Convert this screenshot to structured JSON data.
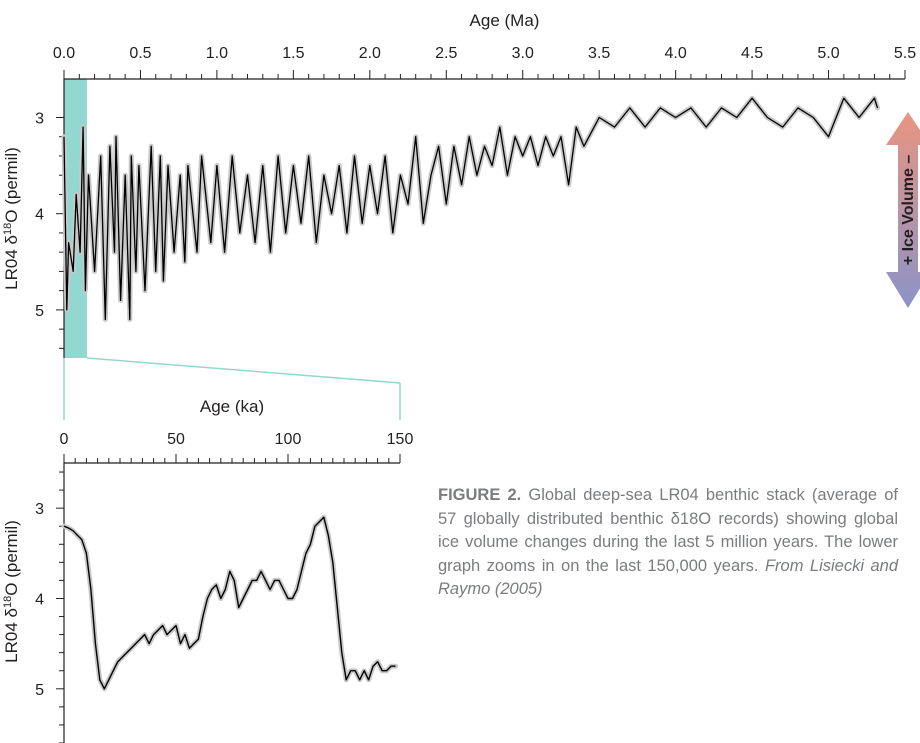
{
  "chart_data": [
    {
      "type": "line",
      "xlabel": "Age (Ma)",
      "ylabel": "LR04 δ18O (permil)",
      "xlim": [
        0,
        5.5
      ],
      "ylim": [
        2.6,
        5.5
      ],
      "y_inverted": true,
      "x_ticks": [
        "0.0",
        "0.5",
        "1.0",
        "1.5",
        "2.0",
        "2.5",
        "3.0",
        "3.5",
        "4.0",
        "4.5",
        "5.0",
        "5.5"
      ],
      "y_ticks": [
        "3",
        "4",
        "5"
      ],
      "grid": false,
      "highlight_range_ma": [
        0,
        0.15
      ],
      "highlight_color": "#93d7d1",
      "line_color": "#000000",
      "uncertainty_color": "#c8c8c8",
      "series": [
        {
          "x": [
            0.0,
            0.018,
            0.03,
            0.06,
            0.08,
            0.105,
            0.125,
            0.14,
            0.16,
            0.2,
            0.24,
            0.27,
            0.3,
            0.33,
            0.34,
            0.37,
            0.4,
            0.43,
            0.44,
            0.47,
            0.49,
            0.53,
            0.57,
            0.6,
            0.63,
            0.65,
            0.68,
            0.72,
            0.76,
            0.79,
            0.81,
            0.87,
            0.9,
            0.96,
            1.0,
            1.05,
            1.1,
            1.15,
            1.2,
            1.25,
            1.3,
            1.35,
            1.4,
            1.45,
            1.5,
            1.55,
            1.6,
            1.65,
            1.7,
            1.75,
            1.8,
            1.85,
            1.9,
            1.95,
            2.0,
            2.05,
            2.1,
            2.15,
            2.2,
            2.25,
            2.3,
            2.35,
            2.4,
            2.45,
            2.5,
            2.55,
            2.6,
            2.65,
            2.7,
            2.75,
            2.8,
            2.85,
            2.9,
            2.95,
            3.0,
            3.05,
            3.1,
            3.15,
            3.2,
            3.25,
            3.3,
            3.35,
            3.4,
            3.5,
            3.6,
            3.7,
            3.8,
            3.9,
            4.0,
            4.1,
            4.2,
            4.3,
            4.4,
            4.5,
            4.6,
            4.7,
            4.8,
            4.9,
            5.0,
            5.1,
            5.2,
            5.3,
            5.32
          ],
          "y": [
            3.2,
            5.0,
            4.3,
            4.6,
            3.8,
            4.4,
            3.1,
            4.8,
            3.6,
            4.6,
            3.4,
            5.1,
            3.3,
            4.4,
            3.2,
            4.9,
            3.6,
            5.1,
            3.4,
            4.6,
            3.5,
            4.8,
            3.3,
            4.6,
            3.4,
            4.7,
            3.5,
            4.4,
            3.6,
            4.5,
            3.5,
            4.4,
            3.4,
            4.3,
            3.5,
            4.4,
            3.4,
            4.2,
            3.6,
            4.3,
            3.5,
            4.4,
            3.4,
            4.2,
            3.5,
            4.1,
            3.4,
            4.3,
            3.6,
            4.0,
            3.5,
            4.2,
            3.4,
            4.1,
            3.5,
            4.0,
            3.4,
            4.2,
            3.6,
            3.9,
            3.2,
            4.1,
            3.6,
            3.3,
            3.9,
            3.3,
            3.7,
            3.2,
            3.6,
            3.3,
            3.5,
            3.1,
            3.6,
            3.2,
            3.4,
            3.2,
            3.5,
            3.2,
            3.4,
            3.2,
            3.7,
            3.1,
            3.3,
            3.0,
            3.1,
            2.9,
            3.1,
            2.9,
            3.0,
            2.9,
            3.1,
            2.9,
            3.0,
            2.8,
            3.0,
            3.1,
            2.9,
            3.0,
            3.2,
            2.8,
            3.0,
            2.8,
            2.9
          ]
        }
      ],
      "side_indicator": {
        "label": "+ Ice Volume –",
        "top_color": "#e8957f",
        "bottom_color": "#8b93c8"
      }
    },
    {
      "type": "line",
      "xlabel": "Age (ka)",
      "ylabel": "LR04 δ18O (permil)",
      "xlim": [
        0,
        150
      ],
      "ylim": [
        2.5,
        5.6
      ],
      "y_inverted": true,
      "x_ticks": [
        "0",
        "50",
        "100",
        "150"
      ],
      "y_ticks": [
        "3",
        "4",
        "5"
      ],
      "grid": false,
      "line_color": "#000000",
      "uncertainty_color": "#c8c8c8",
      "series": [
        {
          "x": [
            0,
            2,
            4,
            6,
            8,
            10,
            12,
            14,
            16,
            18,
            20,
            22,
            24,
            26,
            28,
            30,
            32,
            34,
            36,
            38,
            40,
            42,
            44,
            46,
            48,
            50,
            52,
            54,
            56,
            58,
            60,
            62,
            64,
            66,
            68,
            70,
            72,
            74,
            76,
            78,
            80,
            82,
            84,
            86,
            88,
            90,
            92,
            94,
            96,
            98,
            100,
            102,
            104,
            106,
            108,
            110,
            112,
            114,
            116,
            118,
            120,
            122,
            124,
            126,
            128,
            130,
            132,
            134,
            136,
            138,
            140,
            142,
            144,
            146,
            148
          ],
          "y": [
            3.2,
            3.22,
            3.25,
            3.3,
            3.35,
            3.5,
            3.9,
            4.5,
            4.9,
            5.0,
            4.9,
            4.8,
            4.7,
            4.65,
            4.6,
            4.55,
            4.5,
            4.45,
            4.4,
            4.5,
            4.4,
            4.35,
            4.3,
            4.4,
            4.35,
            4.3,
            4.5,
            4.4,
            4.55,
            4.5,
            4.45,
            4.2,
            4.0,
            3.9,
            3.85,
            4.0,
            3.9,
            3.7,
            3.8,
            4.1,
            4.0,
            3.9,
            3.8,
            3.8,
            3.7,
            3.8,
            3.9,
            3.8,
            3.8,
            3.9,
            4.0,
            4.0,
            3.9,
            3.7,
            3.5,
            3.4,
            3.2,
            3.15,
            3.1,
            3.3,
            3.6,
            4.1,
            4.6,
            4.9,
            4.8,
            4.8,
            4.9,
            4.8,
            4.9,
            4.75,
            4.7,
            4.8,
            4.8,
            4.75,
            4.75
          ]
        }
      ]
    }
  ],
  "caption": {
    "label": "FIGURE 2.",
    "text": " Global deep-sea LR04 benthic stack (average of 57 globally distributed benthic δ18O records) showing global ice volume changes during the last 5 million years. The lower graph zooms in on the last 150,000 years. ",
    "source": "From Lisiecki and Raymo (2005)"
  }
}
